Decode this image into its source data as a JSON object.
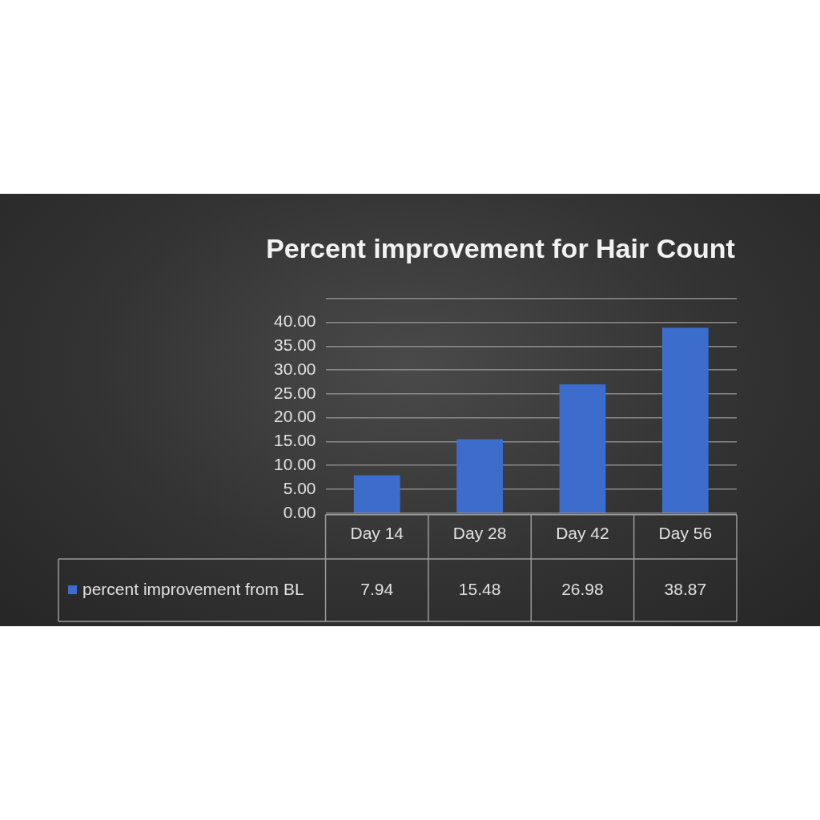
{
  "chart_data": {
    "type": "bar",
    "title": "Percent improvement for Hair Count",
    "categories": [
      "Day 14",
      "Day 28",
      "Day 42",
      "Day 56"
    ],
    "series": [
      {
        "name": "percent improvement from BL",
        "color": "#3d6dcc",
        "values": [
          7.94,
          15.48,
          26.98,
          38.87
        ]
      }
    ],
    "ylim": [
      0,
      45
    ],
    "yticks": [
      {
        "value": 0,
        "label": "0.00"
      },
      {
        "value": 5,
        "label": "5.00"
      },
      {
        "value": 10,
        "label": "10.00"
      },
      {
        "value": 15,
        "label": "15.00"
      },
      {
        "value": 20,
        "label": "20.00"
      },
      {
        "value": 25,
        "label": "25.00"
      },
      {
        "value": 30,
        "label": "30.00"
      },
      {
        "value": 35,
        "label": "35.00"
      },
      {
        "value": 40,
        "label": "40.00"
      },
      {
        "value": 45,
        "label": null
      }
    ],
    "grid": "y",
    "legend": "bottom",
    "data_labels": true
  }
}
